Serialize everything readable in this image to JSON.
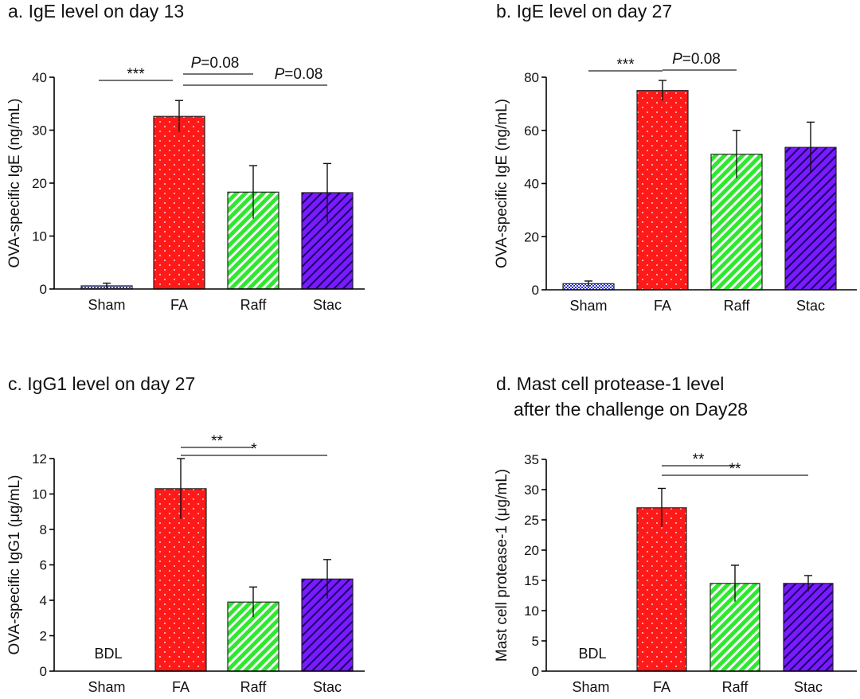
{
  "pattern_colors": {
    "Sham": {
      "fill": "#2b35c9",
      "line": "#ffffff"
    },
    "FA": {
      "fill": "#ff1a1a",
      "line": "#ffd0d0"
    },
    "Raff": {
      "fill": "#2ee82e",
      "line": "#ffffff"
    },
    "Stac": {
      "fill": "#7a1aff",
      "line": "#1a0066"
    }
  },
  "chart_data": [
    {
      "type": "bar",
      "title": "a. IgE level on day 13",
      "ylabel": "OVA-specific IgE (ng/mL)",
      "categories": [
        "Sham",
        "FA",
        "Raff",
        "Stac"
      ],
      "values": [
        0.6,
        32.6,
        18.3,
        18.2
      ],
      "errors": [
        0.5,
        3.0,
        5.0,
        5.5
      ],
      "ylim": [
        0,
        40
      ],
      "yticks": [
        0,
        10,
        20,
        30,
        40
      ],
      "bar_labels": [
        "",
        "",
        "",
        ""
      ],
      "significance": [
        {
          "from": "Sham",
          "to": "FA",
          "label": "***",
          "italic_p": false
        },
        {
          "from": "FA",
          "to": "Raff",
          "label": "=0.08",
          "italic_p": true
        },
        {
          "from": "FA",
          "to": "Stac",
          "label": "=0.08",
          "italic_p": true
        }
      ]
    },
    {
      "type": "bar",
      "title": "b. IgE level on day 27",
      "ylabel": "OVA-specific IgE (ng/mL)",
      "categories": [
        "Sham",
        "FA",
        "Raff",
        "Stac"
      ],
      "values": [
        2.3,
        75.0,
        51.0,
        53.6
      ],
      "errors": [
        1.0,
        3.8,
        9.0,
        9.5
      ],
      "ylim": [
        0,
        80
      ],
      "yticks": [
        0,
        20,
        40,
        60,
        80
      ],
      "bar_labels": [
        "",
        "",
        "",
        ""
      ],
      "significance": [
        {
          "from": "Sham",
          "to": "FA",
          "label": "***",
          "italic_p": false
        },
        {
          "from": "FA",
          "to": "Raff",
          "label": "=0.08",
          "italic_p": true
        }
      ]
    },
    {
      "type": "bar",
      "title": "c. IgG1 level on day 27",
      "ylabel": "OVA-specific IgG1 (μg/mL)",
      "categories": [
        "Sham",
        "FA",
        "Raff",
        "Stac"
      ],
      "values": [
        0,
        10.3,
        3.9,
        5.2
      ],
      "errors": [
        0,
        1.7,
        0.85,
        1.1
      ],
      "ylim": [
        0,
        12
      ],
      "yticks": [
        0,
        2,
        4,
        6,
        8,
        10,
        12
      ],
      "bar_labels": [
        "BDL",
        "",
        "",
        ""
      ],
      "significance": [
        {
          "from": "FA",
          "to": "Raff",
          "label": "**",
          "italic_p": false
        },
        {
          "from": "FA",
          "to": "Stac",
          "label": "*",
          "italic_p": false
        }
      ]
    },
    {
      "type": "bar",
      "title": "d. Mast cell protease-1 level",
      "title_line2": "after the challenge on Day28",
      "ylabel": "Mast cell protease-1 (μg/mL)",
      "categories": [
        "Sham",
        "FA",
        "Raff",
        "Stac"
      ],
      "values": [
        0,
        27.0,
        14.5,
        14.5
      ],
      "errors": [
        0,
        3.2,
        3.0,
        1.3
      ],
      "ylim": [
        0,
        35
      ],
      "yticks": [
        0,
        5,
        10,
        15,
        20,
        25,
        30,
        35
      ],
      "bar_labels": [
        "BDL",
        "",
        "",
        ""
      ],
      "significance": [
        {
          "from": "FA",
          "to": "Raff",
          "label": "**",
          "italic_p": false
        },
        {
          "from": "FA",
          "to": "Stac",
          "label": "**",
          "italic_p": false
        }
      ]
    }
  ]
}
